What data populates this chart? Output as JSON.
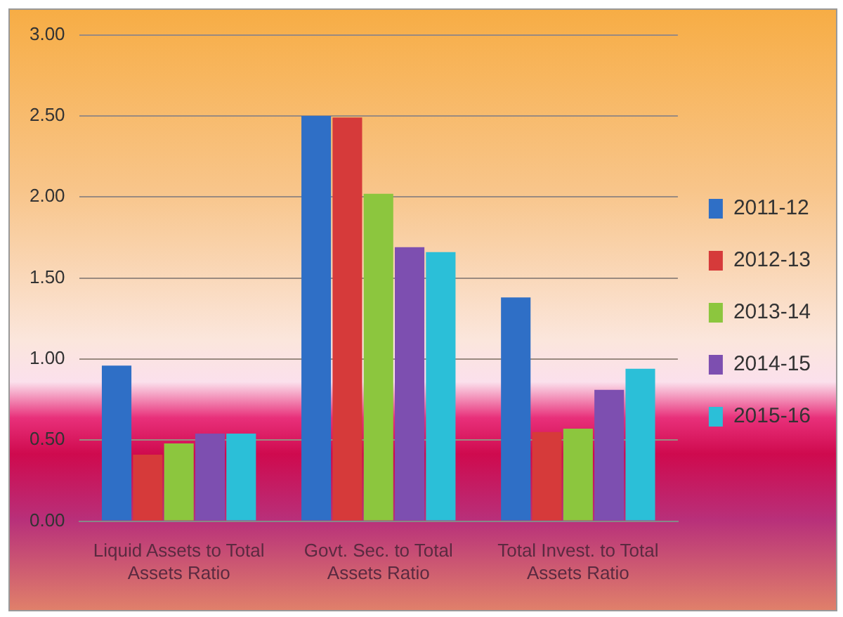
{
  "chart_data": {
    "type": "bar",
    "categories": [
      "Liquid Assets to Total Assets Ratio",
      "Govt. Sec. to Total Assets Ratio",
      "Total Invest. to Total Assets Ratio"
    ],
    "series": [
      {
        "name": "2011-12",
        "color": "#2f6fc6",
        "values": [
          0.96,
          2.5,
          1.38
        ]
      },
      {
        "name": "2012-13",
        "color": "#d63a3a",
        "values": [
          0.41,
          2.49,
          0.55
        ]
      },
      {
        "name": "2013-14",
        "color": "#8cc63e",
        "values": [
          0.48,
          2.02,
          0.57
        ]
      },
      {
        "name": "2014-15",
        "color": "#7d4fb0",
        "values": [
          0.54,
          1.69,
          0.81
        ]
      },
      {
        "name": "2015-16",
        "color": "#2bbfd8",
        "values": [
          0.54,
          1.66,
          0.94
        ]
      }
    ],
    "ylim": [
      0,
      3
    ],
    "yticks": [
      {
        "value": 0,
        "label": "0.00"
      },
      {
        "value": 0.5,
        "label": "0.50"
      },
      {
        "value": 1,
        "label": "1.00"
      },
      {
        "value": 1.5,
        "label": "1.50"
      },
      {
        "value": 2,
        "label": "2.00"
      },
      {
        "value": 2.5,
        "label": "2.50"
      },
      {
        "value": 3,
        "label": "3.00"
      }
    ],
    "grid": "y",
    "legend": "right"
  }
}
